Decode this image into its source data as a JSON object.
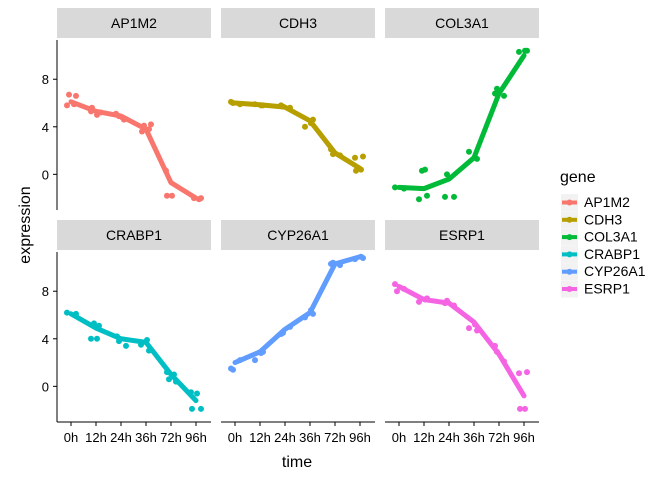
{
  "chart_data": {
    "type": "line",
    "facet_by": "gene",
    "xlabel": "time",
    "ylabel": "expression",
    "categories": [
      "0h",
      "12h",
      "24h",
      "36h",
      "72h",
      "96h"
    ],
    "ylim": [
      -3,
      11.3
    ],
    "yticks": [
      0,
      4,
      8
    ],
    "grid": false,
    "legend": {
      "title": "gene",
      "position": "right"
    },
    "series": [
      {
        "name": "AP1M2",
        "color": "#F8766D",
        "trend": [
          6.1,
          5.3,
          4.9,
          3.8,
          -0.7,
          -2.0
        ],
        "points": [
          [
            0,
            5.8
          ],
          [
            0,
            6.6
          ],
          [
            0,
            6.7
          ],
          [
            0,
            5.9
          ],
          [
            1,
            5.3
          ],
          [
            1,
            5.0
          ],
          [
            1,
            5.6
          ],
          [
            1,
            5.2
          ],
          [
            2,
            4.9
          ],
          [
            2,
            4.6
          ],
          [
            2,
            5.1
          ],
          [
            2,
            4.8
          ],
          [
            3,
            3.6
          ],
          [
            3,
            4.2
          ],
          [
            3,
            4.1
          ],
          [
            3,
            3.8
          ],
          [
            4,
            0.3
          ],
          [
            4,
            -1.8
          ],
          [
            4,
            -1.8
          ],
          [
            5,
            -2.0
          ],
          [
            5,
            -2.0
          ],
          [
            5,
            -2.1
          ]
        ]
      },
      {
        "name": "CDH3",
        "color": "#B79F00",
        "trend": [
          6.0,
          5.85,
          5.65,
          4.5,
          1.8,
          0.5
        ],
        "points": [
          [
            0,
            6.1
          ],
          [
            0,
            5.9
          ],
          [
            0,
            6.0
          ],
          [
            1,
            5.8
          ],
          [
            1,
            5.9
          ],
          [
            1,
            5.8
          ],
          [
            2,
            5.8
          ],
          [
            2,
            5.6
          ],
          [
            2,
            5.7
          ],
          [
            3,
            4.6
          ],
          [
            3,
            4.0
          ],
          [
            3,
            4.3
          ],
          [
            4,
            2.1
          ],
          [
            4,
            1.6
          ],
          [
            4,
            1.7
          ],
          [
            5,
            1.5
          ],
          [
            5,
            1.4
          ],
          [
            5,
            0.4
          ],
          [
            5,
            0.3
          ]
        ]
      },
      {
        "name": "COL3A1",
        "color": "#00BA38",
        "trend": [
          -1.1,
          -1.2,
          -0.4,
          1.4,
          6.8,
          10.0
        ],
        "points": [
          [
            0,
            -1.1
          ],
          [
            0,
            -1.2
          ],
          [
            1,
            0.3
          ],
          [
            1,
            -1.8
          ],
          [
            1,
            -2.1
          ],
          [
            1,
            0.4
          ],
          [
            2,
            -1.9
          ],
          [
            2,
            -1.9
          ],
          [
            2,
            0.0
          ],
          [
            3,
            1.3
          ],
          [
            3,
            1.9
          ],
          [
            3,
            1.4
          ],
          [
            4,
            6.8
          ],
          [
            4,
            6.6
          ],
          [
            4,
            7.2
          ],
          [
            5,
            10.4
          ],
          [
            5,
            10.3
          ],
          [
            5,
            10.4
          ]
        ]
      },
      {
        "name": "CRABP1",
        "color": "#00BFC4",
        "trend": [
          6.1,
          4.9,
          4.0,
          3.7,
          1.0,
          -1.2
        ],
        "points": [
          [
            0,
            6.2
          ],
          [
            0,
            6.1
          ],
          [
            1,
            5.3
          ],
          [
            1,
            5.1
          ],
          [
            1,
            4.0
          ],
          [
            1,
            4.0
          ],
          [
            2,
            4.2
          ],
          [
            2,
            3.4
          ],
          [
            2,
            3.8
          ],
          [
            3,
            3.0
          ],
          [
            3,
            3.5
          ],
          [
            3,
            3.9
          ],
          [
            4,
            1.2
          ],
          [
            4,
            0.4
          ],
          [
            4,
            0.6
          ],
          [
            4,
            1.0
          ],
          [
            5,
            -0.5
          ],
          [
            5,
            -0.6
          ],
          [
            5,
            -1.9
          ],
          [
            5,
            -1.9
          ]
        ]
      },
      {
        "name": "CYP26A1",
        "color": "#619CFF",
        "trend": [
          2.0,
          2.9,
          4.8,
          6.2,
          10.3,
          10.9
        ],
        "points": [
          [
            0,
            1.5
          ],
          [
            0,
            2.2
          ],
          [
            0,
            1.4
          ],
          [
            1,
            2.9
          ],
          [
            1,
            2.2
          ],
          [
            1,
            2.8
          ],
          [
            2,
            4.4
          ],
          [
            2,
            5.0
          ],
          [
            2,
            4.5
          ],
          [
            3,
            6.1
          ],
          [
            3,
            5.8
          ],
          [
            3,
            6.4
          ],
          [
            4,
            10.3
          ],
          [
            4,
            10.2
          ],
          [
            4,
            10.4
          ],
          [
            5,
            10.8
          ],
          [
            5,
            10.7
          ],
          [
            5,
            10.9
          ]
        ]
      },
      {
        "name": "ESRP1",
        "color": "#F564E3",
        "trend": [
          8.4,
          7.3,
          7.0,
          5.4,
          2.7,
          -0.8
        ],
        "points": [
          [
            0,
            8.6
          ],
          [
            0,
            8.2
          ],
          [
            0,
            8.0
          ],
          [
            1,
            7.4
          ],
          [
            1,
            7.1
          ],
          [
            1,
            7.3
          ],
          [
            2,
            7.0
          ],
          [
            2,
            6.8
          ],
          [
            2,
            7.2
          ],
          [
            3,
            4.7
          ],
          [
            3,
            4.9
          ],
          [
            3,
            5.2
          ],
          [
            4,
            3.4
          ],
          [
            4,
            2.1
          ],
          [
            4,
            2.9
          ],
          [
            5,
            1.2
          ],
          [
            5,
            1.1
          ],
          [
            5,
            -1.9
          ],
          [
            5,
            -1.9
          ]
        ]
      }
    ]
  }
}
